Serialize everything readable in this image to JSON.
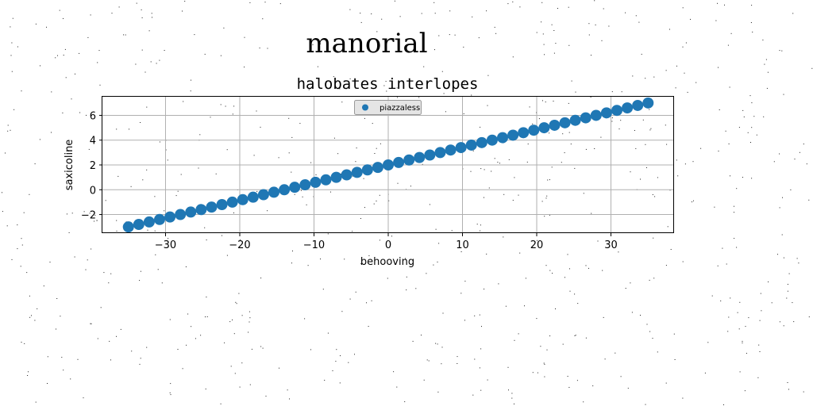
{
  "chart_data": {
    "type": "scatter",
    "suptitle": "manorial",
    "title": "halobates interlopes",
    "xlabel": "behooving",
    "ylabel": "saxicoline",
    "xlim": [
      -38.5,
      38.5
    ],
    "ylim": [
      -3.5,
      7.5
    ],
    "xticks": [
      -30,
      -20,
      -10,
      0,
      10,
      20,
      30
    ],
    "yticks": [
      -2,
      0,
      2,
      4,
      6
    ],
    "grid": true,
    "legend_position": "top-center",
    "series": [
      {
        "name": "piazzaless",
        "color": "#1f77b4",
        "x": [
          -35.0,
          -33.6,
          -32.2,
          -30.8,
          -29.4,
          -28.0,
          -26.6,
          -25.2,
          -23.8,
          -22.4,
          -21.0,
          -19.6,
          -18.2,
          -16.8,
          -15.4,
          -14.0,
          -12.6,
          -11.2,
          -9.8,
          -8.4,
          -7.0,
          -5.6,
          -4.2,
          -2.8,
          -1.4,
          0.0,
          1.4,
          2.8,
          4.2,
          5.6,
          7.0,
          8.4,
          9.8,
          11.2,
          12.6,
          14.0,
          15.4,
          16.8,
          18.2,
          19.6,
          21.0,
          22.4,
          23.8,
          25.2,
          26.6,
          28.0,
          29.4,
          30.8,
          32.2,
          33.6,
          35.0
        ],
        "y": [
          -3.0,
          -2.8,
          -2.6,
          -2.4,
          -2.2,
          -2.0,
          -1.8,
          -1.6,
          -1.4,
          -1.2,
          -1.0,
          -0.8,
          -0.6,
          -0.4,
          -0.2,
          0.0,
          0.2,
          0.4,
          0.6,
          0.8,
          1.0,
          1.2,
          1.4,
          1.6,
          1.8,
          2.0,
          2.2,
          2.4,
          2.6,
          2.8,
          3.0,
          3.2,
          3.4,
          3.6,
          3.8,
          4.0,
          4.2,
          4.4,
          4.6,
          4.8,
          5.0,
          5.2,
          5.4,
          5.6,
          5.8,
          6.0,
          6.2,
          6.4,
          6.6,
          6.8,
          7.0
        ]
      }
    ]
  }
}
